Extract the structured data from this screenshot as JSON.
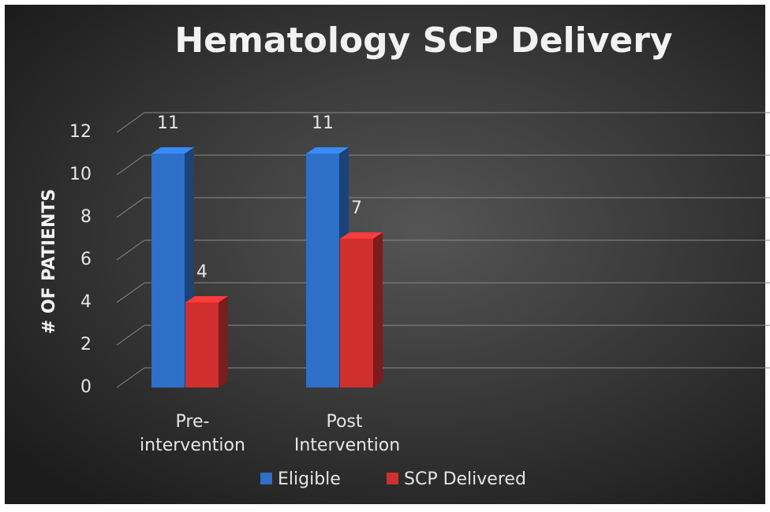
{
  "chart_data": {
    "type": "bar3d",
    "title": "Hematology SCP Delivery",
    "y_label": "# OF PATIENTS",
    "categories": [
      "Pre-intervention",
      "Post Intervention"
    ],
    "series": [
      {
        "name": "Eligible",
        "color": "#2e6fc7",
        "values": [
          11,
          11
        ]
      },
      {
        "name": "SCP Delivered",
        "color": "#cf2f2f",
        "values": [
          4,
          7
        ]
      }
    ],
    "ylim": [
      0,
      12
    ],
    "yticks": [
      0,
      2,
      4,
      6,
      8,
      10,
      12
    ],
    "grid": true,
    "legend": "bottom"
  }
}
